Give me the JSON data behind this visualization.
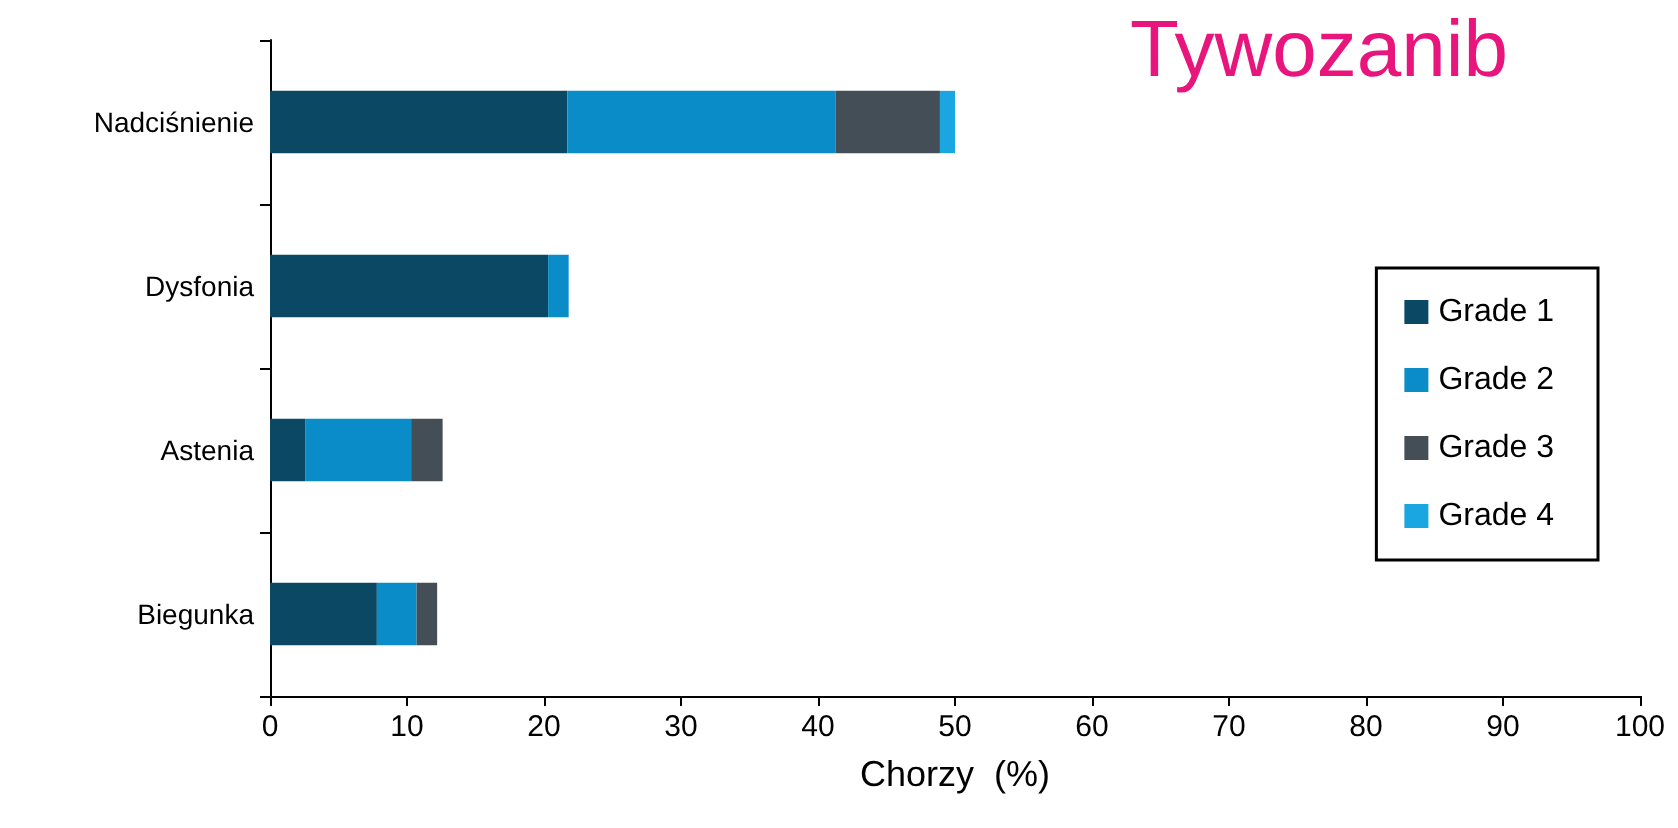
{
  "chart_data": {
    "type": "bar",
    "orientation": "horizontal",
    "stacked": true,
    "title": "Tywozanib",
    "xlabel": "Chorzy  (%)",
    "categories": [
      "Nadciśnienie",
      "Dysfonia",
      "Astenia",
      "Biegunka"
    ],
    "series": [
      {
        "name": "Grade 1",
        "color": "#0b4863",
        "values": [
          21.7,
          20.3,
          2.6,
          7.8
        ]
      },
      {
        "name": "Grade 2",
        "color": "#0a8cc8",
        "values": [
          19.6,
          1.5,
          7.7,
          2.9
        ]
      },
      {
        "name": "Grade 3",
        "color": "#444e56",
        "values": [
          7.6,
          null,
          2.3,
          1.5
        ]
      },
      {
        "name": "Grade 4",
        "color": "#1aa6e0",
        "values": [
          1.1,
          null,
          null,
          null
        ]
      }
    ],
    "xlim": [
      0,
      100
    ],
    "xticks": [
      0,
      10,
      20,
      30,
      40,
      50,
      60,
      70,
      80,
      90,
      100
    ],
    "grid": false,
    "legend": "right"
  }
}
